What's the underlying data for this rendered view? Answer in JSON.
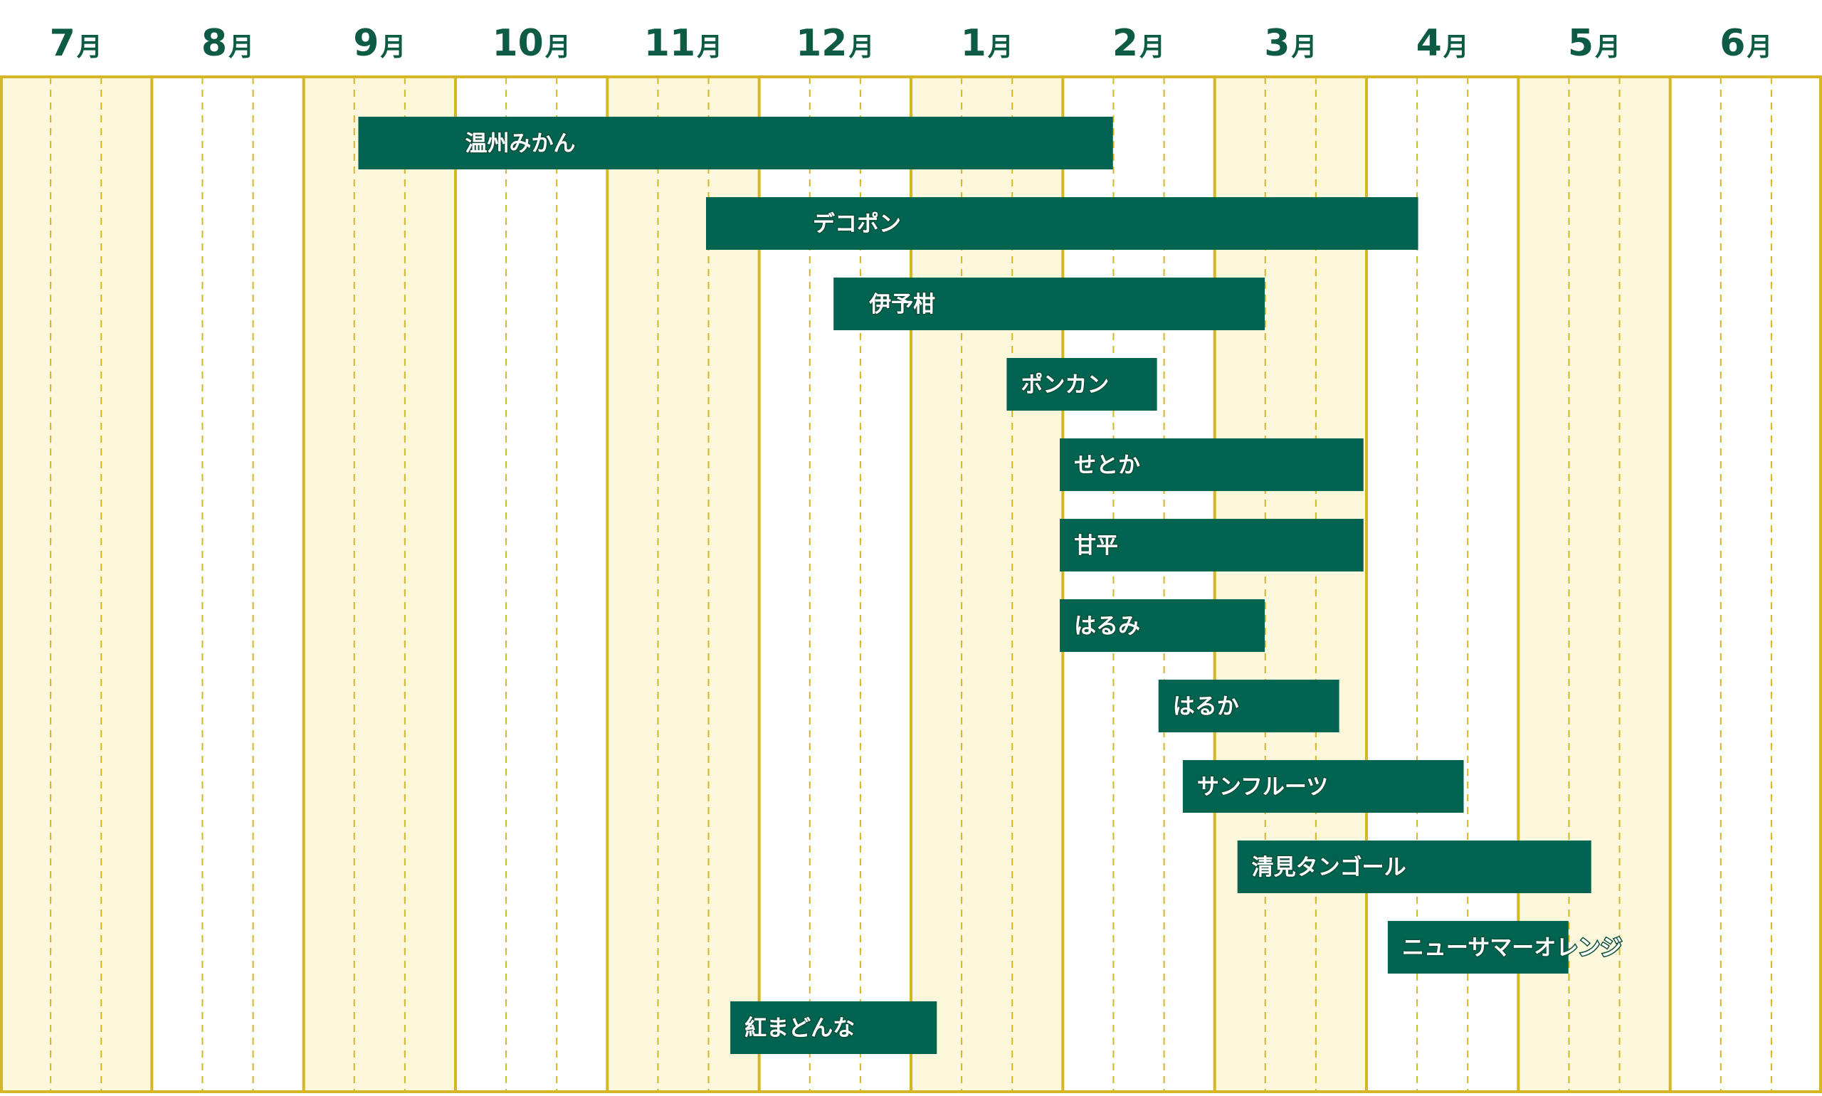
{
  "chart_data": {
    "type": "gantt",
    "title": "",
    "months": [
      {
        "num": "7",
        "unit": "月"
      },
      {
        "num": "8",
        "unit": "月"
      },
      {
        "num": "9",
        "unit": "月"
      },
      {
        "num": "10",
        "unit": "月"
      },
      {
        "num": "11",
        "unit": "月"
      },
      {
        "num": "12",
        "unit": "月"
      },
      {
        "num": "1",
        "unit": "月"
      },
      {
        "num": "2",
        "unit": "月"
      },
      {
        "num": "3",
        "unit": "月"
      },
      {
        "num": "4",
        "unit": "月"
      },
      {
        "num": "5",
        "unit": "月"
      },
      {
        "num": "6",
        "unit": "月"
      }
    ],
    "x_unit": "months since start of July",
    "xlim": [
      0,
      12
    ],
    "series": [
      {
        "name": "温州みかん",
        "start": 2.36,
        "end": 7.33
      },
      {
        "name": "デコポン",
        "start": 4.65,
        "end": 9.34
      },
      {
        "name": "伊予柑",
        "start": 5.49,
        "end": 8.33
      },
      {
        "name": "ポンカン",
        "start": 6.63,
        "end": 7.62
      },
      {
        "name": "せとか",
        "start": 6.98,
        "end": 8.98
      },
      {
        "name": "甘平",
        "start": 6.98,
        "end": 8.98
      },
      {
        "name": "はるみ",
        "start": 6.98,
        "end": 8.33
      },
      {
        "name": "はるか",
        "start": 7.63,
        "end": 8.82
      },
      {
        "name": "サンフルーツ",
        "start": 7.79,
        "end": 9.64
      },
      {
        "name": "清見タンゴール",
        "start": 8.15,
        "end": 10.48
      },
      {
        "name": "ニューサマーオレンジ",
        "start": 9.14,
        "end": 10.33
      },
      {
        "name": "紅まどんな",
        "start": 4.81,
        "end": 6.17
      }
    ],
    "grid": true
  },
  "colors": {
    "bar": "#006450",
    "month_text": "#0d5a45",
    "band_shade": "#fdf8dc",
    "band_plain": "#ffffff",
    "grid": "#d4b626"
  }
}
